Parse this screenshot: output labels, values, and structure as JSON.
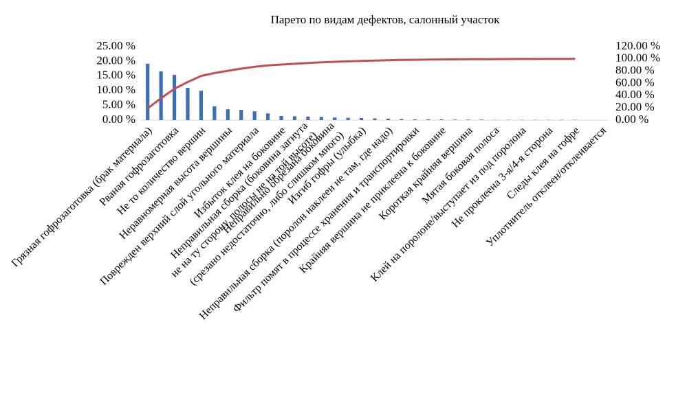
{
  "chart_data": {
    "type": "pareto",
    "title": "Парето по видам дефектов, салонный участок",
    "categories": [
      [
        "Грязная гофрозаготовка (брак материала)"
      ],
      null,
      [
        "Рваная гофрозаготовка"
      ],
      null,
      [
        "Не то количество вершин"
      ],
      null,
      [
        "Неравномерная высота вершины"
      ],
      null,
      [
        "Поврежден верхний слой угольного материала"
      ],
      null,
      [
        "Избыток клея на боковине"
      ],
      null,
      [
        "Неправильная сборка (боковина загнута",
        "не на ту сторону, полосы не на той высоте)"
      ],
      null,
      [
        "Неправильно обрезана боковина",
        "(срезано недостаточно, либо слишком много)"
      ],
      null,
      [
        "Изгиб гофры (улыбка)"
      ],
      null,
      [
        "Неправильная сборка (поролон наклеен не там, где надо)"
      ],
      null,
      [
        "Фильтр помят в процессе хранения и транспортировки"
      ],
      null,
      [
        "Крайняя вершина не приклеена к боковине"
      ],
      null,
      [
        "Короткая крайняя вершина"
      ],
      null,
      [
        "Мятая боковая полоса"
      ],
      null,
      [
        "Клей на поролоне/выступает из под поролона"
      ],
      null,
      [
        "Не проклеена 3-я/4-я сторона"
      ],
      null,
      [
        "Следы клея на гофре"
      ],
      null,
      [
        "Уплотнитель отклеен/отклеивается"
      ]
    ],
    "series": [
      {
        "type": "bar",
        "color": "#3d6fb6",
        "values": [
          19.2,
          16.6,
          15.4,
          11.0,
          10.0,
          4.7,
          3.7,
          3.5,
          3.0,
          2.3,
          1.4,
          1.3,
          1.2,
          1.1,
          0.9,
          0.8,
          0.7,
          0.6,
          0.5,
          0.4,
          0.3,
          0.3,
          0.3,
          0.2,
          0.2,
          0.2,
          0.1,
          0.1,
          0.1,
          0.1,
          0.1,
          0.1,
          0.1,
          0,
          0
        ]
      },
      {
        "type": "line",
        "axis": "y2",
        "color": "#c0504d",
        "values": [
          19.2,
          35.8,
          51.2,
          62.2,
          72.2,
          76.9,
          80.6,
          84.1,
          87.1,
          89.4,
          90.8,
          92.1,
          93.3,
          94.4,
          95.3,
          96.1,
          96.8,
          97.4,
          97.9,
          98.3,
          98.6,
          98.9,
          99.1,
          99.3,
          99.5,
          99.6,
          99.7,
          99.8,
          99.9,
          99.9,
          100,
          100,
          100,
          null,
          null
        ]
      }
    ],
    "ylim": [
      0,
      25
    ],
    "yticks": [
      {
        "value": 0,
        "label": "0.00 %"
      },
      {
        "value": 5,
        "label": "5.00 %"
      },
      {
        "value": 10,
        "label": "10.00 %"
      },
      {
        "value": 15,
        "label": "15.00 %"
      },
      {
        "value": 20,
        "label": "20.00 %"
      },
      {
        "value": 25,
        "label": "25.00 %"
      }
    ],
    "y2lim": [
      0,
      120
    ],
    "y2ticks": [
      {
        "value": 0,
        "label": "0.00 %"
      },
      {
        "value": 20,
        "label": "20.00 %"
      },
      {
        "value": 40,
        "label": "40.00 %"
      },
      {
        "value": 60,
        "label": "60.00 %"
      },
      {
        "value": 80,
        "label": "80.00 %"
      },
      {
        "value": 100,
        "label": "100.00 %"
      },
      {
        "value": 120,
        "label": "120.00 %"
      }
    ]
  }
}
